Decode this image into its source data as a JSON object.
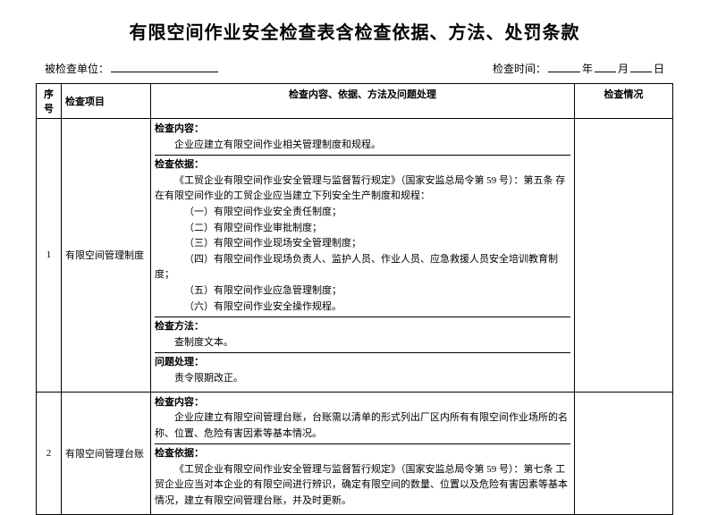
{
  "title": "有限空间作业安全检查表含检查依据、方法、处罚条款",
  "info": {
    "unit_label": "被检查单位：",
    "time_label": "检查时间：",
    "year": "年",
    "month": "月",
    "day": "日"
  },
  "headers": {
    "num": "序号",
    "item": "检查项目",
    "content": "检查内容、依据、方法及问题处理",
    "status": "检查情况"
  },
  "rows": [
    {
      "num": "1",
      "item": "有限空间管理制度",
      "sections": [
        {
          "label": "检查内容：",
          "lines": [
            "企业应建立有限空间作业相关管理制度和规程。"
          ]
        },
        {
          "label": "检查依据：",
          "lines": [
            "《工贸企业有限空间作业安全管理与监督暂行规定》（国家安监总局令第 59 号）：第五条  存在有限空间作业的工贸企业应当建立下列安全生产制度和规程：",
            "（一）有限空间作业安全责任制度；",
            "（二）有限空间作业审批制度；",
            "（三）有限空间作业现场安全管理制度；",
            "（四）有限空间作业现场负责人、监护人员、作业人员、应急救援人员安全培训教育制度；",
            "（五）有限空间作业应急管理制度；",
            "（六）有限空间作业安全操作规程。"
          ]
        },
        {
          "label": "检查方法：",
          "lines": [
            "查制度文本。"
          ]
        },
        {
          "label": "问题处理：",
          "lines": [
            "责令限期改正。"
          ]
        }
      ]
    },
    {
      "num": "2",
      "item": "有限空间管理台账",
      "sections": [
        {
          "label": "检查内容：",
          "lines": [
            "企业应建立有限空间管理台账，台账需以清单的形式列出厂区内所有有限空间作业场所的名称、位置、危险有害因素等基本情况。"
          ]
        },
        {
          "label": "检查依据：",
          "lines": [
            "《工贸企业有限空间作业安全管理与监督暂行规定》（国家安监总局令第 59 号）：第七条  工贸企业应当对本企业的有限空间进行辨识，确定有限空间的数量、位置以及危险有害因素等基本情况，建立有限空间管理台账，并及时更新。"
          ]
        }
      ]
    }
  ]
}
